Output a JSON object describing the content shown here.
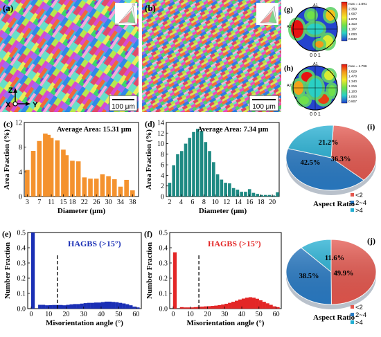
{
  "colors": {
    "orange": "#f4922e",
    "teal": "#1f8a83",
    "blue": "#1a2fb5",
    "red": "#e32626",
    "pie_red": "#e4574e",
    "pie_blue": "#2a7bc4",
    "pie_cyan": "#22aed2"
  },
  "maps": {
    "a": {
      "label": "(a)",
      "scale": "100 μm"
    },
    "b": {
      "label": "(b)",
      "scale": "100 μm"
    },
    "axes": {
      "z": "Z",
      "x": "X",
      "y": "Y"
    }
  },
  "ipf_triangle": {
    "t1": "111",
    "t2": "101",
    "t3": "001"
  },
  "pole_figures": [
    {
      "label": "(g)",
      "plane": "0 0 1",
      "a1": "A1",
      "a2": "A2",
      "legend": [
        "max = 2.891",
        "2.359",
        "1.997",
        "1.673",
        "1.410",
        "1.187",
        "1.000",
        "0.842"
      ]
    },
    {
      "label": "(h)",
      "plane": "0 0 1",
      "a1": "A1",
      "a2": "A2",
      "legend": [
        "max = 1.796",
        "1.629",
        "1.478",
        "1.340",
        "1.216",
        "1.103",
        "1.000",
        "0.907"
      ]
    }
  ],
  "chart_data": [
    {
      "id": "c",
      "type": "bar",
      "label": "(c)",
      "annotation": "Average Area: 15.31 μm",
      "xlabel": "Diameter (μm)",
      "ylabel": "Area Fraction (%)",
      "xlim": [
        2,
        40
      ],
      "ylim": [
        0,
        12
      ],
      "xticks": [
        "3",
        "7",
        "11",
        "15",
        "18",
        "22",
        "26",
        "30",
        "34",
        "38"
      ],
      "yticks": [
        "0",
        "4",
        "8",
        "12"
      ],
      "x": [
        3,
        5,
        7,
        9,
        10,
        11,
        13,
        15,
        16,
        18,
        20,
        22,
        24,
        26,
        28,
        30,
        32,
        34,
        36,
        38
      ],
      "values": [
        4.3,
        7.4,
        9.0,
        10.2,
        10.0,
        9.5,
        9.1,
        7.6,
        6.7,
        5.8,
        5.7,
        3.1,
        2.9,
        2.9,
        3.6,
        3.3,
        2.8,
        1.6,
        2.7,
        1.0
      ]
    },
    {
      "id": "d",
      "type": "bar",
      "label": "(d)",
      "annotation": "Average Area: 7.34 μm",
      "xlabel": "Diameter (μm)",
      "ylabel": "Area Fraction (%)",
      "xlim": [
        1.4,
        21.2
      ],
      "ylim": [
        0,
        14
      ],
      "xticks": [
        "2",
        "4",
        "6",
        "8",
        "10",
        "12",
        "14",
        "16",
        "18",
        "20"
      ],
      "yticks": [
        "0",
        "2",
        "4",
        "6",
        "8",
        "10",
        "12",
        "14"
      ],
      "x": [
        2,
        2.7,
        3.4,
        4.1,
        4.8,
        5.5,
        6.2,
        6.9,
        7.6,
        8.3,
        9,
        9.7,
        10.4,
        11.1,
        11.8,
        12.5,
        13.2,
        13.9,
        14.6,
        15.3,
        16,
        16.7,
        17.4,
        18.1,
        18.8,
        19.5,
        20.2,
        20.9
      ],
      "values": [
        2.6,
        5.9,
        8.0,
        8.6,
        10.0,
        11.1,
        12.2,
        12.8,
        12.4,
        10.3,
        8.6,
        6.5,
        4.2,
        3.2,
        2.6,
        2.5,
        1.6,
        1.3,
        0.9,
        0.9,
        1.4,
        0.7,
        0.5,
        0.3,
        0.3,
        0.3,
        0.2,
        0.8
      ]
    },
    {
      "id": "e",
      "type": "bar",
      "label": "(e)",
      "annotation": "HAGBS (>15°)",
      "xlabel": "Misorientation angle (°)",
      "ylabel": "Number Fraction",
      "xlim": [
        -2,
        63
      ],
      "ylim": [
        0,
        0.5
      ],
      "xticks": [
        "0",
        "10",
        "20",
        "30",
        "40",
        "50",
        "60"
      ],
      "yticks": [
        "0.0",
        "0.1",
        "0.2",
        "0.3",
        "0.4",
        "0.5"
      ],
      "dashed_x": 15,
      "x": [
        1,
        5,
        7,
        9,
        11,
        13,
        15,
        17,
        19,
        21,
        23,
        25,
        27,
        29,
        31,
        33,
        35,
        37,
        39,
        41,
        43,
        45,
        47,
        49,
        51,
        53,
        55,
        57,
        59,
        61
      ],
      "values": [
        0.5,
        0.025,
        0.025,
        0.022,
        0.023,
        0.024,
        0.024,
        0.024,
        0.022,
        0.025,
        0.028,
        0.03,
        0.03,
        0.033,
        0.036,
        0.038,
        0.038,
        0.04,
        0.04,
        0.043,
        0.046,
        0.046,
        0.044,
        0.042,
        0.038,
        0.034,
        0.029,
        0.022,
        0.013,
        0.008
      ]
    },
    {
      "id": "f",
      "type": "bar",
      "label": "(f)",
      "annotation": "HAGBS (>15°)",
      "xlabel": "Misorientation angle (°)",
      "ylabel": "Number Fraction",
      "xlim": [
        -2,
        63
      ],
      "ylim": [
        0,
        0.5
      ],
      "xticks": [
        "0",
        "10",
        "20",
        "30",
        "40",
        "50",
        "60"
      ],
      "yticks": [
        "0.0",
        "0.1",
        "0.2",
        "0.3",
        "0.4",
        "0.5"
      ],
      "dashed_x": 15,
      "x": [
        1,
        5,
        7,
        9,
        11,
        13,
        15,
        17,
        19,
        21,
        23,
        25,
        27,
        29,
        31,
        33,
        35,
        37,
        39,
        41,
        43,
        45,
        47,
        49,
        51,
        53,
        55,
        57,
        59,
        61
      ],
      "values": [
        0.37,
        0.01,
        0.008,
        0.008,
        0.008,
        0.01,
        0.012,
        0.013,
        0.015,
        0.016,
        0.018,
        0.02,
        0.023,
        0.027,
        0.032,
        0.038,
        0.045,
        0.052,
        0.06,
        0.066,
        0.072,
        0.075,
        0.072,
        0.065,
        0.055,
        0.045,
        0.035,
        0.025,
        0.015,
        0.01
      ]
    },
    {
      "id": "i",
      "type": "pie",
      "label": "(i)",
      "title": "Aspect Ratio",
      "categories": [
        "<2",
        "2~4",
        ">4"
      ],
      "values": [
        36.3,
        42.5,
        21.2
      ],
      "labels": [
        "36.3%",
        "42.5%",
        "21.2%"
      ]
    },
    {
      "id": "j",
      "type": "pie",
      "label": "(j)",
      "title": "Aspect Ratio",
      "categories": [
        "<2",
        "2~4",
        ">4"
      ],
      "values": [
        49.9,
        38.5,
        11.6
      ],
      "labels": [
        "49.9%",
        "38.5%",
        "11.6%"
      ]
    }
  ]
}
